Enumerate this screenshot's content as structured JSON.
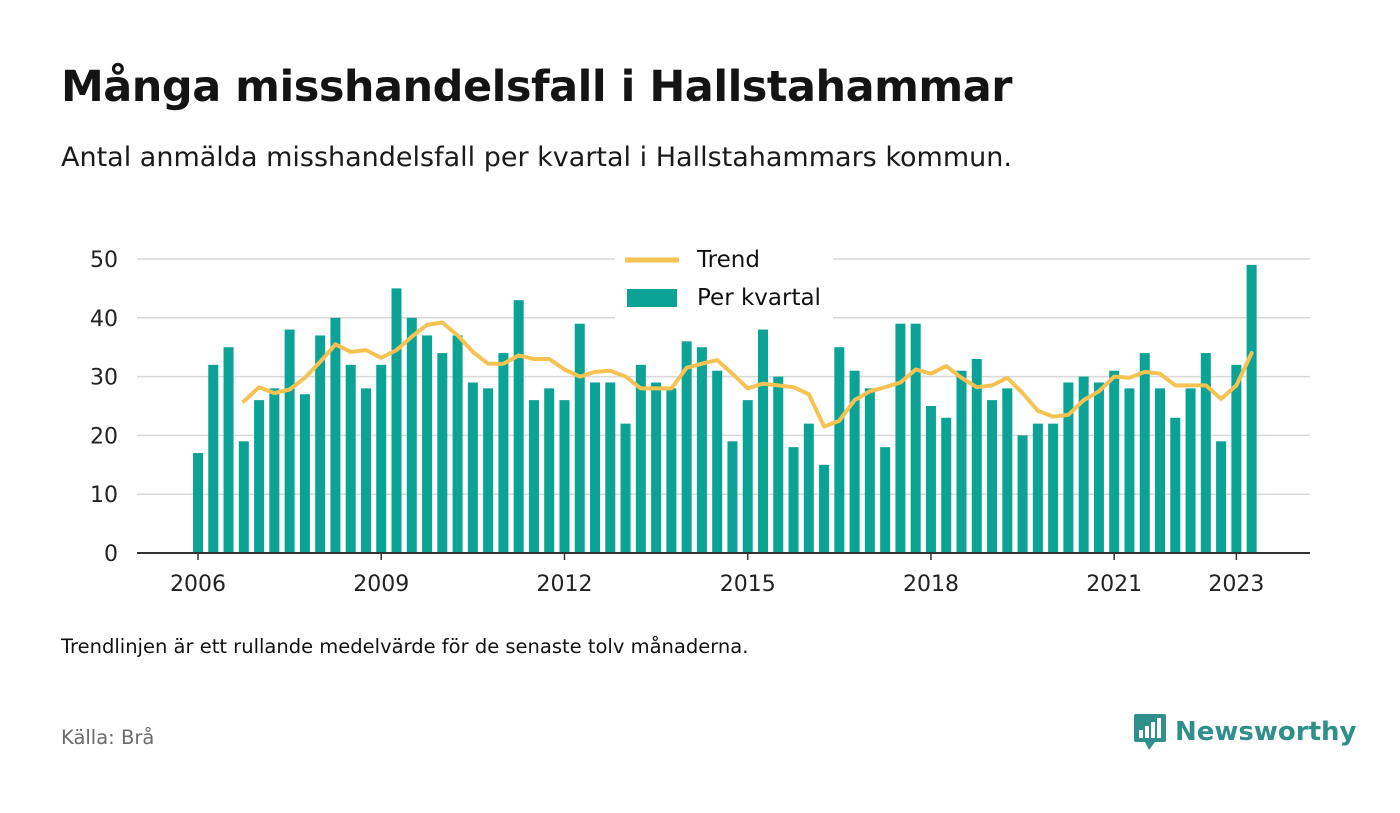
{
  "header": {
    "title": "Många misshandelsfall i Hallstahammar",
    "subtitle": "Antal anmälda misshandelsfall per kvartal i Hallstahammars kommun."
  },
  "footer": {
    "note": "Trendlinjen är ett rullande medelvärde för de senaste tolv månaderna.",
    "source": "Källa: Brå",
    "brand": "Newsworthy",
    "brand_icon": "bar-chart-speech-bubble-icon"
  },
  "colors": {
    "bars": "#0ba396",
    "trend": "#f6c353",
    "grid": "#d9d9d9",
    "axis": "#333333",
    "brand": "#2f8f8a"
  },
  "chart_data": {
    "type": "bar",
    "x_axis": {
      "type": "time",
      "start": "2006 Q1",
      "end": "2023 Q2",
      "ticks": [
        "2006",
        "2009",
        "2012",
        "2015",
        "2018",
        "2021",
        "2023"
      ]
    },
    "y_axis": {
      "ylim": [
        0,
        50
      ],
      "ticks": [
        0,
        10,
        20,
        30,
        40,
        50
      ]
    },
    "grid": true,
    "legend": {
      "placement": "top-center",
      "entries": [
        "Trend",
        "Per kvartal"
      ]
    },
    "quarters": [
      "2006 Q1",
      "2006 Q2",
      "2006 Q3",
      "2006 Q4",
      "2007 Q1",
      "2007 Q2",
      "2007 Q3",
      "2007 Q4",
      "2008 Q1",
      "2008 Q2",
      "2008 Q3",
      "2008 Q4",
      "2009 Q1",
      "2009 Q2",
      "2009 Q3",
      "2009 Q4",
      "2010 Q1",
      "2010 Q2",
      "2010 Q3",
      "2010 Q4",
      "2011 Q1",
      "2011 Q2",
      "2011 Q3",
      "2011 Q4",
      "2012 Q1",
      "2012 Q2",
      "2012 Q3",
      "2012 Q4",
      "2013 Q1",
      "2013 Q2",
      "2013 Q3",
      "2013 Q4",
      "2014 Q1",
      "2014 Q2",
      "2014 Q3",
      "2014 Q4",
      "2015 Q1",
      "2015 Q2",
      "2015 Q3",
      "2015 Q4",
      "2016 Q1",
      "2016 Q2",
      "2016 Q3",
      "2016 Q4",
      "2017 Q1",
      "2017 Q2",
      "2017 Q3",
      "2017 Q4",
      "2018 Q1",
      "2018 Q2",
      "2018 Q3",
      "2018 Q4",
      "2019 Q1",
      "2019 Q2",
      "2019 Q3",
      "2019 Q4",
      "2020 Q1",
      "2020 Q2",
      "2020 Q3",
      "2020 Q4",
      "2021 Q1",
      "2021 Q2",
      "2021 Q3",
      "2021 Q4",
      "2022 Q1",
      "2022 Q2",
      "2022 Q3",
      "2022 Q4",
      "2023 Q1",
      "2023 Q2"
    ],
    "series": [
      {
        "name": "Per kvartal",
        "type": "bar",
        "values": [
          17,
          32,
          35,
          19,
          26,
          28,
          38,
          27,
          37,
          40,
          32,
          28,
          32,
          45,
          40,
          37,
          34,
          37,
          29,
          28,
          34,
          43,
          26,
          28,
          26,
          39,
          29,
          29,
          22,
          32,
          29,
          28,
          36,
          35,
          31,
          19,
          26,
          38,
          30,
          18,
          22,
          15,
          35,
          31,
          28,
          18,
          39,
          39,
          25,
          23,
          31,
          33,
          26,
          28,
          20,
          22,
          22,
          29,
          30,
          29,
          31,
          28,
          34,
          28,
          23,
          28,
          34,
          19,
          32,
          49
        ]
      },
      {
        "name": "Trend",
        "type": "line",
        "start_index": 3,
        "values": [
          25.8,
          28.2,
          27.2,
          27.8,
          29.8,
          32.5,
          35.5,
          34.2,
          34.5,
          33.2,
          34.5,
          36.8,
          38.8,
          39.2,
          37.0,
          34.2,
          32.2,
          32.2,
          33.6,
          33.0,
          33.0,
          31.2,
          30.0,
          30.8,
          31.0,
          30.0,
          28.0,
          28.0,
          28.0,
          31.5,
          32.2,
          32.8,
          30.5,
          28.0,
          28.8,
          28.5,
          28.2,
          27.0,
          21.5,
          22.5,
          26.0,
          27.5,
          28.2,
          29.0,
          31.2,
          30.5,
          31.8,
          29.8,
          28.2,
          28.5,
          29.8,
          27.2,
          24.2,
          23.2,
          23.5,
          26.0,
          27.5,
          30.0,
          29.8,
          30.8,
          30.5,
          28.5,
          28.5,
          28.5,
          26.2,
          28.5,
          34.0
        ]
      }
    ]
  }
}
